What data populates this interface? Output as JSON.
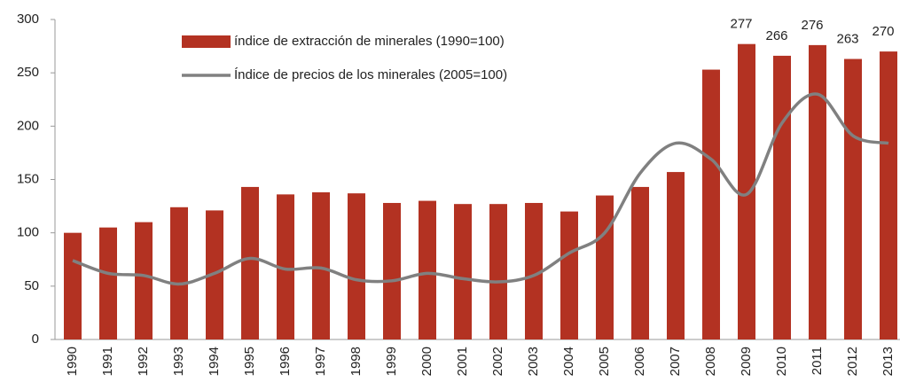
{
  "chart_data": {
    "type": "bar-line",
    "categories": [
      "1990",
      "1991",
      "1992",
      "1993",
      "1994",
      "1995",
      "1996",
      "1997",
      "1998",
      "1999",
      "2000",
      "2001",
      "2002",
      "2003",
      "2004",
      "2005",
      "2006",
      "2007",
      "2008",
      "2009",
      "2010",
      "2011",
      "2012",
      "2013"
    ],
    "series": [
      {
        "name": "índice de extracción de minerales (1990=100)",
        "type": "bar",
        "color": "#b33222",
        "values": [
          100,
          105,
          110,
          124,
          121,
          143,
          136,
          138,
          137,
          128,
          130,
          127,
          127,
          128,
          120,
          135,
          143,
          157,
          253,
          277,
          266,
          276,
          263,
          270
        ],
        "value_labels": [
          null,
          null,
          null,
          null,
          null,
          null,
          null,
          null,
          null,
          null,
          null,
          null,
          null,
          null,
          null,
          null,
          null,
          null,
          null,
          "277",
          "266",
          "276",
          "263",
          "270"
        ]
      },
      {
        "name": "Índice de precios de los minerales (2005=100)",
        "type": "line",
        "color": "#808080",
        "values": [
          74,
          62,
          60,
          52,
          62,
          76,
          66,
          67,
          56,
          55,
          62,
          57,
          54,
          60,
          81,
          100,
          156,
          184,
          169,
          136,
          203,
          230,
          191,
          184
        ]
      }
    ],
    "ylim": [
      0,
      300
    ],
    "yticks": [
      0,
      50,
      100,
      150,
      200,
      250,
      300
    ],
    "grid": false
  }
}
